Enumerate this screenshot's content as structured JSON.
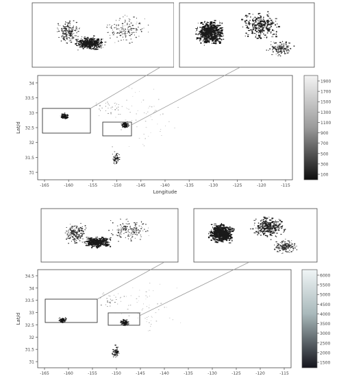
{
  "chart_data": [
    {
      "type": "heatmap",
      "title": "",
      "xlabel": "Longitude",
      "ylabel": "Lat/d",
      "x_ticks": [
        "-165",
        "-160",
        "-155",
        "-150",
        "-145",
        "-140",
        "-135",
        "-130",
        "-125",
        "-120",
        "-115"
      ],
      "y_ticks": [
        "34",
        "33.5",
        "33",
        "32.5",
        "32",
        "31.5",
        "31"
      ],
      "colorbar": {
        "ticks": [
          "1900",
          "1700",
          "1500",
          "1300",
          "1100",
          "900",
          "700",
          "500",
          "300",
          "100"
        ],
        "colormap": "grayscale",
        "low_color": "#111111",
        "high_color": "#f2f2f2"
      },
      "insets": [
        {
          "name": "inset-left",
          "source_region": "left-box"
        },
        {
          "name": "inset-right",
          "source_region": "right-box"
        }
      ],
      "clusters": [
        {
          "x": -161.5,
          "y": 32.9,
          "intensity": 0.9
        },
        {
          "x": -148.5,
          "y": 32.6,
          "intensity": 0.95
        },
        {
          "x": -150.5,
          "y": 31.5,
          "intensity": 0.5
        }
      ],
      "grid": false,
      "legend": "colorbar-right"
    },
    {
      "type": "heatmap",
      "title": "",
      "xlabel": "",
      "ylabel": "Lat/d",
      "x_ticks": [
        "-165",
        "-160",
        "-155",
        "-150",
        "-145",
        "-140",
        "-135",
        "-130",
        "-125",
        "-120",
        "-115"
      ],
      "y_ticks": [
        "34.5",
        "34",
        "33.5",
        "33",
        "32.5",
        "32",
        "31.5",
        "31"
      ],
      "colorbar": {
        "ticks": [
          "6000",
          "5500",
          "5000",
          "4500",
          "4000",
          "3500",
          "3000",
          "2500",
          "2000",
          "1500"
        ],
        "colormap": "bone",
        "low_color": "#1a1a22",
        "high_color": "#eef3f4"
      },
      "insets": [
        {
          "name": "inset-left",
          "source_region": "left-box"
        },
        {
          "name": "inset-right",
          "source_region": "right-box"
        }
      ],
      "clusters": [
        {
          "x": -161.8,
          "y": 32.7,
          "intensity": 0.9
        },
        {
          "x": -148.6,
          "y": 32.6,
          "intensity": 0.95
        },
        {
          "x": -150.4,
          "y": 31.4,
          "intensity": 0.5
        }
      ],
      "grid": false,
      "legend": "colorbar-right"
    }
  ]
}
